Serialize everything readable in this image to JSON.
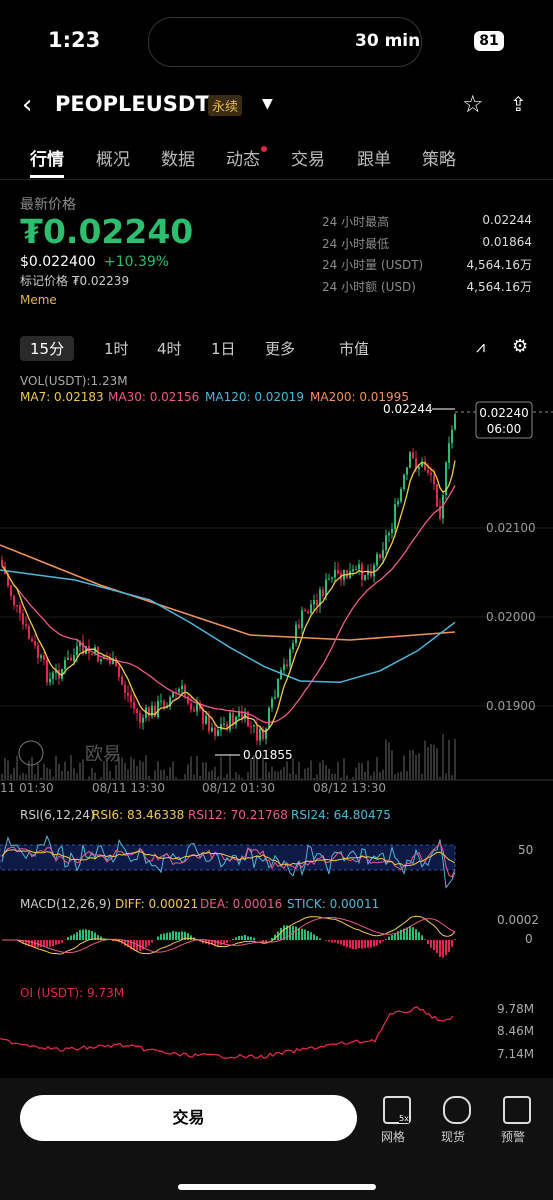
{
  "status": {
    "time": "1:23",
    "island": "30 min",
    "battery": "81"
  },
  "header": {
    "symbol": "PEOPLEUSDT",
    "badge": "永续"
  },
  "tabs": [
    "行情",
    "概况",
    "数据",
    "动态",
    "交易",
    "跟单",
    "策略"
  ],
  "price": {
    "label": "最新价格",
    "main": "₮0.02240",
    "usd": "$0.022400",
    "change": "+10.39%",
    "mark": "标记价格 ₮0.02239",
    "tag": "Meme"
  },
  "stats": [
    {
      "label": "24 小时最高",
      "value": "0.02244"
    },
    {
      "label": "24 小时最低",
      "value": "0.01864"
    },
    {
      "label": "24 小时量 (USDT)",
      "value": "4,564.16万"
    },
    {
      "label": "24 小时额 (USD)",
      "value": "4,564.16万"
    }
  ],
  "intervals": [
    "15分",
    "1时",
    "4时",
    "1日",
    "更多",
    "市值"
  ],
  "chart": {
    "vol": "VOL(USDT):1.23M",
    "ma": [
      "MA7: 0.02183",
      "MA30: 0.02156",
      "MA120: 0.02019",
      "MA200: 0.01995"
    ],
    "high": "0.02244",
    "low": "0.01855",
    "last": "0.02240",
    "countdown": "06:00",
    "yaxis": [
      "0.02100",
      "0.02000",
      "0.01900"
    ],
    "xaxis": [
      "11 01:30",
      "08/11 13:30",
      "08/12 01:30",
      "08/12 13:30"
    ],
    "brand": "欧易"
  },
  "rsi": {
    "head": "RSI(6,12,24)",
    "items": [
      "RSI6: 83.46338",
      "RSI12: 70.21768",
      "RSI24: 64.80475"
    ],
    "level": "50"
  },
  "macd": {
    "head": "MACD(12,26,9)",
    "items": [
      "DIFF: 0.00021",
      "DEA: 0.00016",
      "STICK: 0.00011"
    ],
    "axis": [
      "0.0002",
      "0"
    ]
  },
  "oi": {
    "head": "OI (USDT): 9.73M",
    "axis": [
      "9.78M",
      "8.46M",
      "7.14M"
    ]
  },
  "bottom": {
    "button": "交易",
    "lever": "5x",
    "icons": [
      "网格",
      "现货",
      "预警"
    ]
  }
}
